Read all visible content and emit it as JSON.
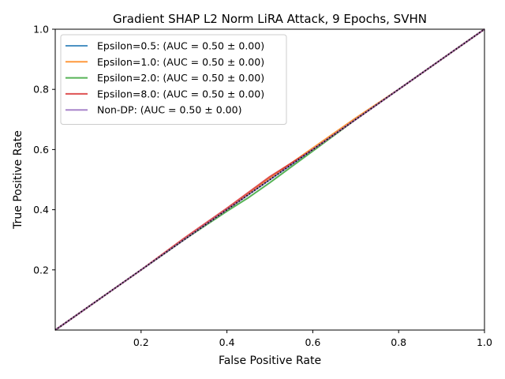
{
  "chart_data": {
    "type": "line",
    "title": "Gradient SHAP L2 Norm LiRA Attack, 9 Epochs, SVHN",
    "xlabel": "False Positive Rate",
    "ylabel": "True Positive Rate",
    "xlim": [
      0.0,
      1.0
    ],
    "ylim": [
      0.0,
      1.0
    ],
    "xticks": [
      0.2,
      0.4,
      0.6,
      0.8,
      1.0
    ],
    "yticks": [
      0.2,
      0.4,
      0.6,
      0.8,
      1.0
    ],
    "xtick_labels": [
      "0.2",
      "0.4",
      "0.6",
      "0.8",
      "1.0"
    ],
    "ytick_labels": [
      "0.2",
      "0.4",
      "0.6",
      "0.8",
      "1.0"
    ],
    "grid": false,
    "legend_position": "top-left",
    "series": [
      {
        "name": "Epsilon=0.5: (AUC = 0.50 ± 0.00)",
        "color": "#1f77b4",
        "x": [
          0.0,
          0.1,
          0.2,
          0.3,
          0.4,
          0.5,
          0.6,
          0.7,
          0.8,
          0.9,
          1.0
        ],
        "y": [
          0.0,
          0.1,
          0.2,
          0.3,
          0.4,
          0.5,
          0.6,
          0.7,
          0.8,
          0.9,
          1.0
        ]
      },
      {
        "name": "Epsilon=1.0: (AUC = 0.50 ± 0.00)",
        "color": "#ff7f0e",
        "x": [
          0.0,
          0.1,
          0.2,
          0.3,
          0.4,
          0.5,
          0.6,
          0.7,
          0.8,
          0.9,
          1.0
        ],
        "y": [
          0.0,
          0.1,
          0.2,
          0.3,
          0.4,
          0.505,
          0.605,
          0.705,
          0.8,
          0.9,
          1.0
        ]
      },
      {
        "name": "Epsilon=2.0: (AUC = 0.50 ± 0.00)",
        "color": "#2ca02c",
        "x": [
          0.0,
          0.1,
          0.2,
          0.3,
          0.4,
          0.45,
          0.5,
          0.6,
          0.7,
          0.8,
          0.9,
          1.0
        ],
        "y": [
          0.0,
          0.1,
          0.2,
          0.3,
          0.395,
          0.44,
          0.49,
          0.595,
          0.7,
          0.8,
          0.9,
          1.0
        ]
      },
      {
        "name": "Epsilon=8.0: (AUC = 0.50 ± 0.00)",
        "color": "#d62728",
        "x": [
          0.0,
          0.1,
          0.2,
          0.3,
          0.4,
          0.5,
          0.6,
          0.7,
          0.8,
          0.9,
          1.0
        ],
        "y": [
          0.0,
          0.1,
          0.2,
          0.305,
          0.405,
          0.51,
          0.6,
          0.7,
          0.8,
          0.9,
          1.0
        ]
      },
      {
        "name": "Non-DP: (AUC = 0.50 ± 0.00)",
        "color": "#9467bd",
        "x": [
          0.0,
          0.1,
          0.2,
          0.3,
          0.4,
          0.5,
          0.6,
          0.7,
          0.8,
          0.9,
          1.0
        ],
        "y": [
          0.0,
          0.1,
          0.2,
          0.3,
          0.4,
          0.5,
          0.6,
          0.7,
          0.8,
          0.9,
          1.0
        ]
      }
    ],
    "reference_line": {
      "x": [
        0.0,
        1.0
      ],
      "y": [
        0.0,
        1.0
      ],
      "style": "dotted",
      "color": "#000000"
    }
  }
}
